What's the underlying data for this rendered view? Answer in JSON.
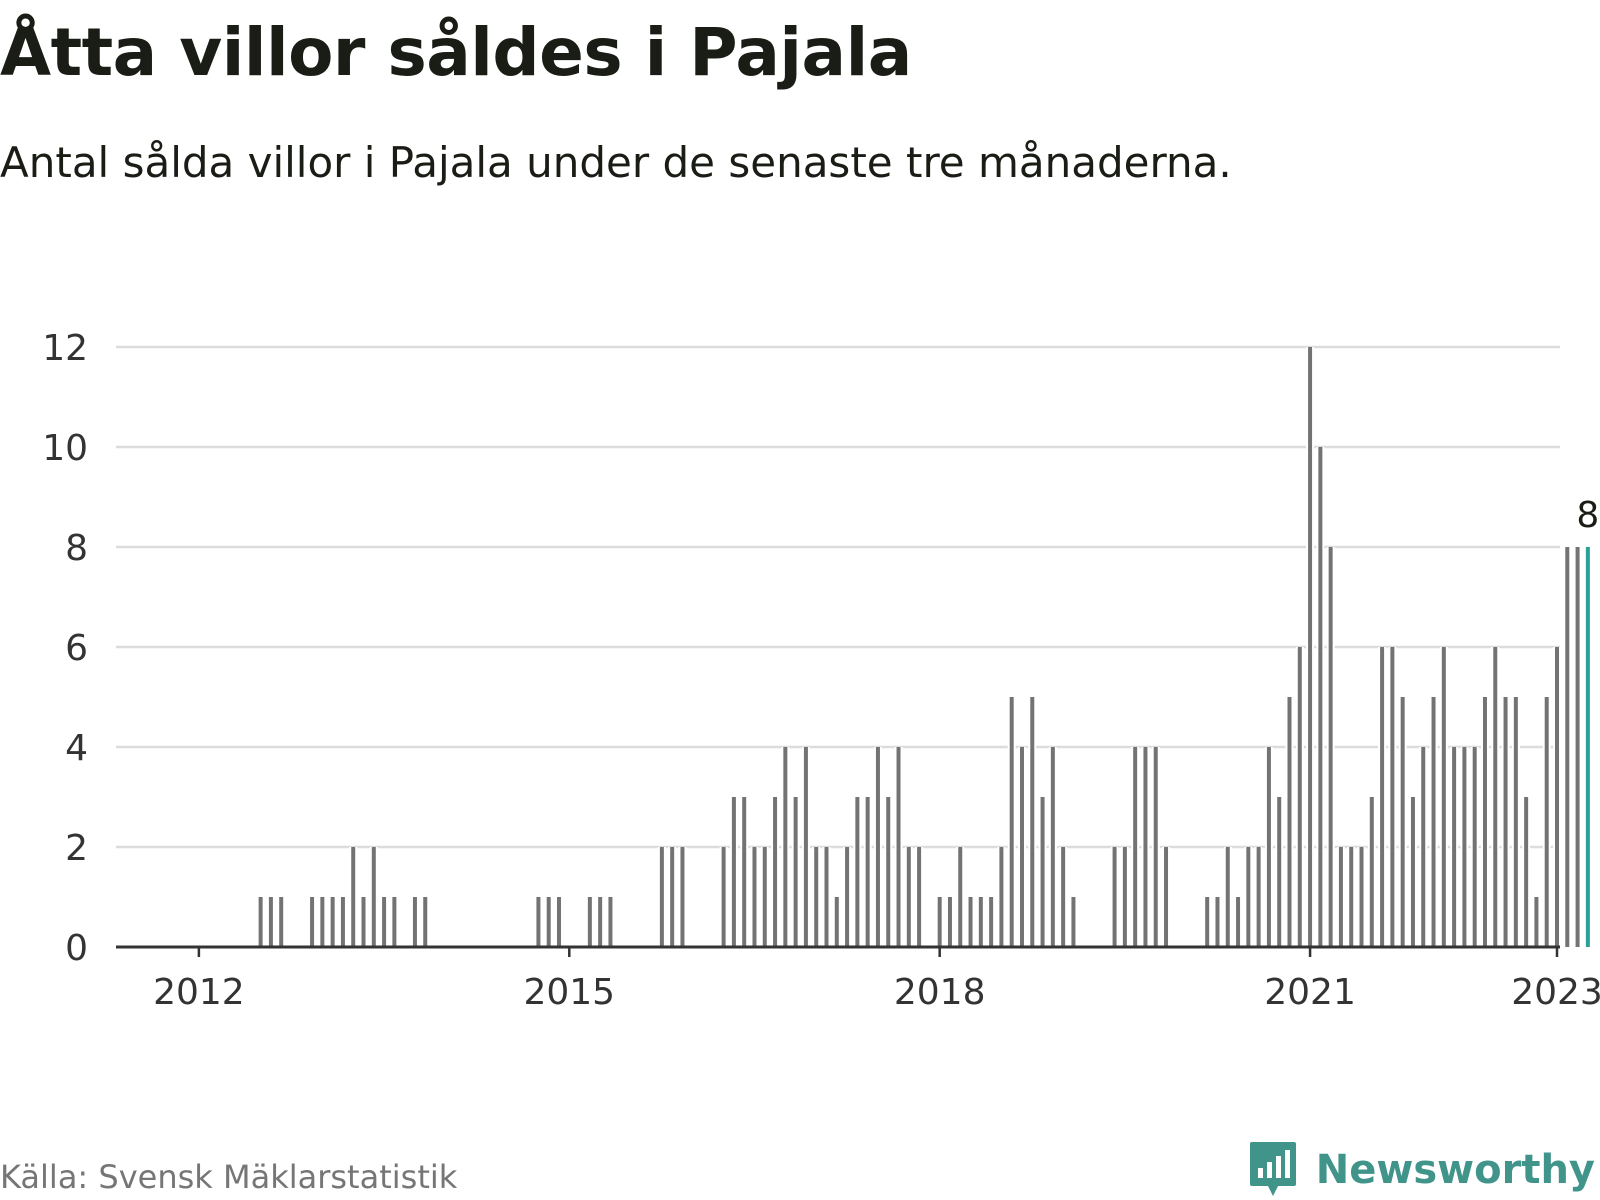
{
  "header": {
    "title": "Åtta villor såldes i Pajala",
    "subtitle": "Antal sålda villor i Pajala under de senaste tre månaderna."
  },
  "footer": {
    "source": "Källa: Svensk Mäklarstatistik",
    "brand": "Newsworthy",
    "brand_icon": "bar-chart-speech-bubble-icon"
  },
  "colors": {
    "bar": "#737373",
    "highlight": "#2aa198",
    "grid": "#dcdcdc",
    "axis": "#333333",
    "brand": "#40948a"
  },
  "chart_data": {
    "type": "bar",
    "title": "Åtta villor såldes i Pajala",
    "subtitle": "Antal sålda villor i Pajala under de senaste tre månaderna.",
    "xlabel": "",
    "ylabel": "",
    "x_start": [
      2011,
      3
    ],
    "x_end": [
      2023,
      1
    ],
    "ylim": [
      0,
      12
    ],
    "yticks": [
      0,
      2,
      4,
      6,
      8,
      10,
      12
    ],
    "xticks": [
      {
        "label": "2012",
        "year": 2012,
        "month": 1
      },
      {
        "label": "2015",
        "year": 2015,
        "month": 1
      },
      {
        "label": "2018",
        "year": 2018,
        "month": 1
      },
      {
        "label": "2021",
        "year": 2021,
        "month": 1
      },
      {
        "label": "2023",
        "year": 2023,
        "month": 1
      }
    ],
    "grid": true,
    "series": [
      {
        "name": "Antal sålda villor",
        "points": [
          [
            "2012-07",
            1
          ],
          [
            "2012-08",
            1
          ],
          [
            "2012-09",
            1
          ],
          [
            "2012-12",
            1
          ],
          [
            "2013-01",
            1
          ],
          [
            "2013-02",
            1
          ],
          [
            "2013-03",
            1
          ],
          [
            "2013-04",
            2
          ],
          [
            "2013-05",
            1
          ],
          [
            "2013-06",
            2
          ],
          [
            "2013-07",
            1
          ],
          [
            "2013-08",
            1
          ],
          [
            "2013-10",
            1
          ],
          [
            "2013-11",
            1
          ],
          [
            "2014-10",
            1
          ],
          [
            "2014-11",
            1
          ],
          [
            "2014-12",
            1
          ],
          [
            "2015-03",
            1
          ],
          [
            "2015-04",
            1
          ],
          [
            "2015-05",
            1
          ],
          [
            "2015-10",
            2
          ],
          [
            "2015-11",
            2
          ],
          [
            "2015-12",
            2
          ],
          [
            "2016-04",
            2
          ],
          [
            "2016-05",
            3
          ],
          [
            "2016-06",
            3
          ],
          [
            "2016-07",
            2
          ],
          [
            "2016-08",
            2
          ],
          [
            "2016-09",
            3
          ],
          [
            "2016-10",
            4
          ],
          [
            "2016-11",
            3
          ],
          [
            "2016-12",
            4
          ],
          [
            "2017-01",
            2
          ],
          [
            "2017-02",
            2
          ],
          [
            "2017-03",
            1
          ],
          [
            "2017-04",
            2
          ],
          [
            "2017-05",
            3
          ],
          [
            "2017-06",
            3
          ],
          [
            "2017-07",
            4
          ],
          [
            "2017-08",
            3
          ],
          [
            "2017-09",
            4
          ],
          [
            "2017-10",
            2
          ],
          [
            "2017-11",
            2
          ],
          [
            "2018-01",
            1
          ],
          [
            "2018-02",
            1
          ],
          [
            "2018-03",
            2
          ],
          [
            "2018-04",
            1
          ],
          [
            "2018-05",
            1
          ],
          [
            "2018-06",
            1
          ],
          [
            "2018-07",
            2
          ],
          [
            "2018-08",
            5
          ],
          [
            "2018-09",
            4
          ],
          [
            "2018-10",
            5
          ],
          [
            "2018-11",
            3
          ],
          [
            "2018-12",
            4
          ],
          [
            "2019-01",
            2
          ],
          [
            "2019-02",
            1
          ],
          [
            "2019-06",
            2
          ],
          [
            "2019-07",
            2
          ],
          [
            "2019-08",
            4
          ],
          [
            "2019-09",
            4
          ],
          [
            "2019-10",
            4
          ],
          [
            "2019-11",
            2
          ],
          [
            "2020-03",
            1
          ],
          [
            "2020-04",
            1
          ],
          [
            "2020-05",
            2
          ],
          [
            "2020-06",
            1
          ],
          [
            "2020-07",
            2
          ],
          [
            "2020-08",
            2
          ],
          [
            "2020-09",
            4
          ],
          [
            "2020-10",
            3
          ],
          [
            "2020-11",
            5
          ],
          [
            "2020-12",
            6
          ],
          [
            "2021-01",
            12
          ],
          [
            "2021-02",
            10
          ],
          [
            "2021-03",
            8
          ],
          [
            "2021-04",
            2
          ],
          [
            "2021-05",
            2
          ],
          [
            "2021-06",
            2
          ],
          [
            "2021-07",
            3
          ],
          [
            "2021-08",
            6
          ],
          [
            "2021-09",
            6
          ],
          [
            "2021-10",
            5
          ],
          [
            "2021-11",
            3
          ],
          [
            "2021-12",
            4
          ],
          [
            "2022-01",
            5
          ],
          [
            "2022-02",
            6
          ],
          [
            "2022-03",
            4
          ],
          [
            "2022-04",
            4
          ],
          [
            "2022-05",
            4
          ],
          [
            "2022-06",
            5
          ],
          [
            "2022-07",
            6
          ],
          [
            "2022-08",
            5
          ],
          [
            "2022-09",
            5
          ],
          [
            "2022-10",
            3
          ],
          [
            "2022-11",
            1
          ],
          [
            "2022-12",
            5
          ],
          [
            "2023-01",
            6
          ],
          [
            "2023-02",
            8
          ],
          [
            "2023-03",
            8
          ],
          [
            "2023-04",
            8
          ]
        ]
      }
    ],
    "highlight": {
      "period": "2023-04",
      "value": 8,
      "label": "8"
    }
  }
}
